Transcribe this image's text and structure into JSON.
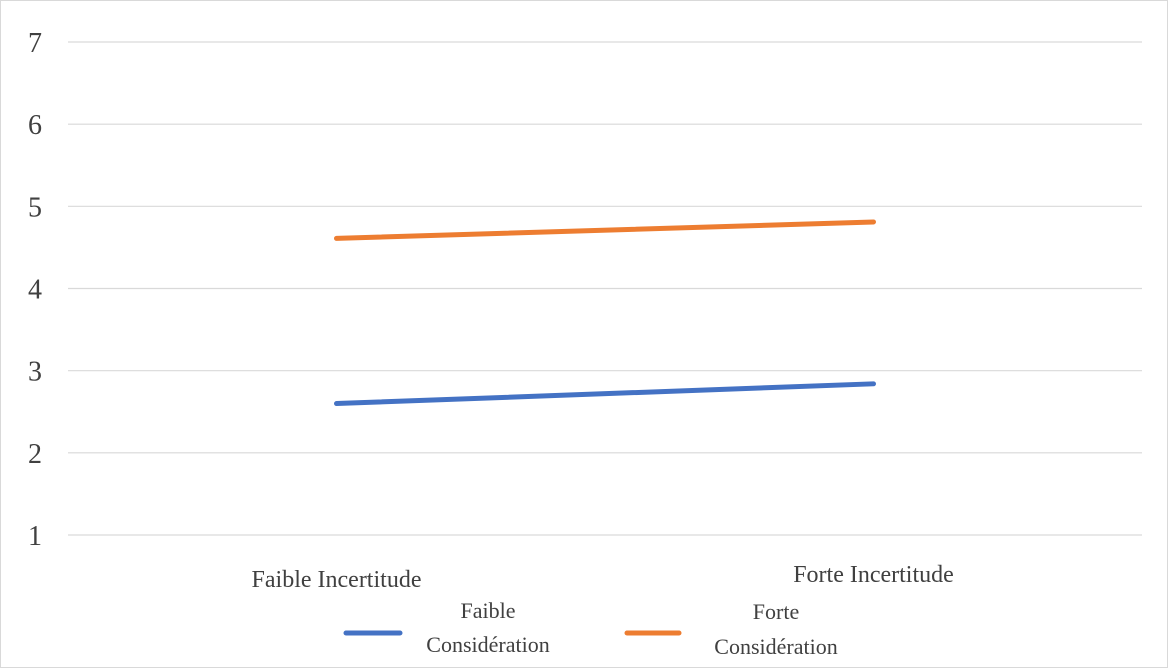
{
  "chart_data": {
    "type": "line",
    "title": "",
    "xlabel": "",
    "ylabel": "",
    "categories": [
      "Faible Incertitude",
      "Forte Incertitude"
    ],
    "ylim": [
      1,
      7
    ],
    "yticks": [
      1,
      2,
      3,
      4,
      5,
      6,
      7
    ],
    "grid": true,
    "legend_position": "bottom",
    "series": [
      {
        "name": "Faible Considération",
        "name_lines": [
          "Faible",
          "Considération"
        ],
        "values": [
          2.6,
          2.84
        ],
        "color": "#4472c4"
      },
      {
        "name": "Forte Considération",
        "name_lines": [
          "Forte",
          "Considération"
        ],
        "values": [
          4.61,
          4.81
        ],
        "color": "#ed7d31"
      }
    ]
  }
}
